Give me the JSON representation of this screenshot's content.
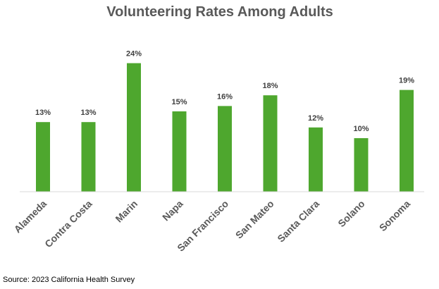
{
  "chart_data": {
    "type": "bar",
    "title": "Volunteering Rates Among Adults",
    "categories": [
      "Alameda",
      "Contra Costa",
      "Marin",
      "Napa",
      "San Francisco",
      "San Mateo",
      "Santa Clara",
      "Solano",
      "Sonoma"
    ],
    "values": [
      13,
      13,
      24,
      15,
      16,
      18,
      12,
      10,
      19
    ],
    "value_suffix": "%",
    "data_labels": [
      "13%",
      "13%",
      "24%",
      "15%",
      "16%",
      "18%",
      "12%",
      "10%",
      "19%"
    ],
    "xlabel": "",
    "ylabel": "",
    "ylim": [
      0,
      24
    ],
    "grid": false,
    "legend": "none",
    "colors": {
      "bar": "#4ea72e",
      "axis": "#d9d9d9"
    }
  },
  "source": "Source: 2023 California Health Survey"
}
